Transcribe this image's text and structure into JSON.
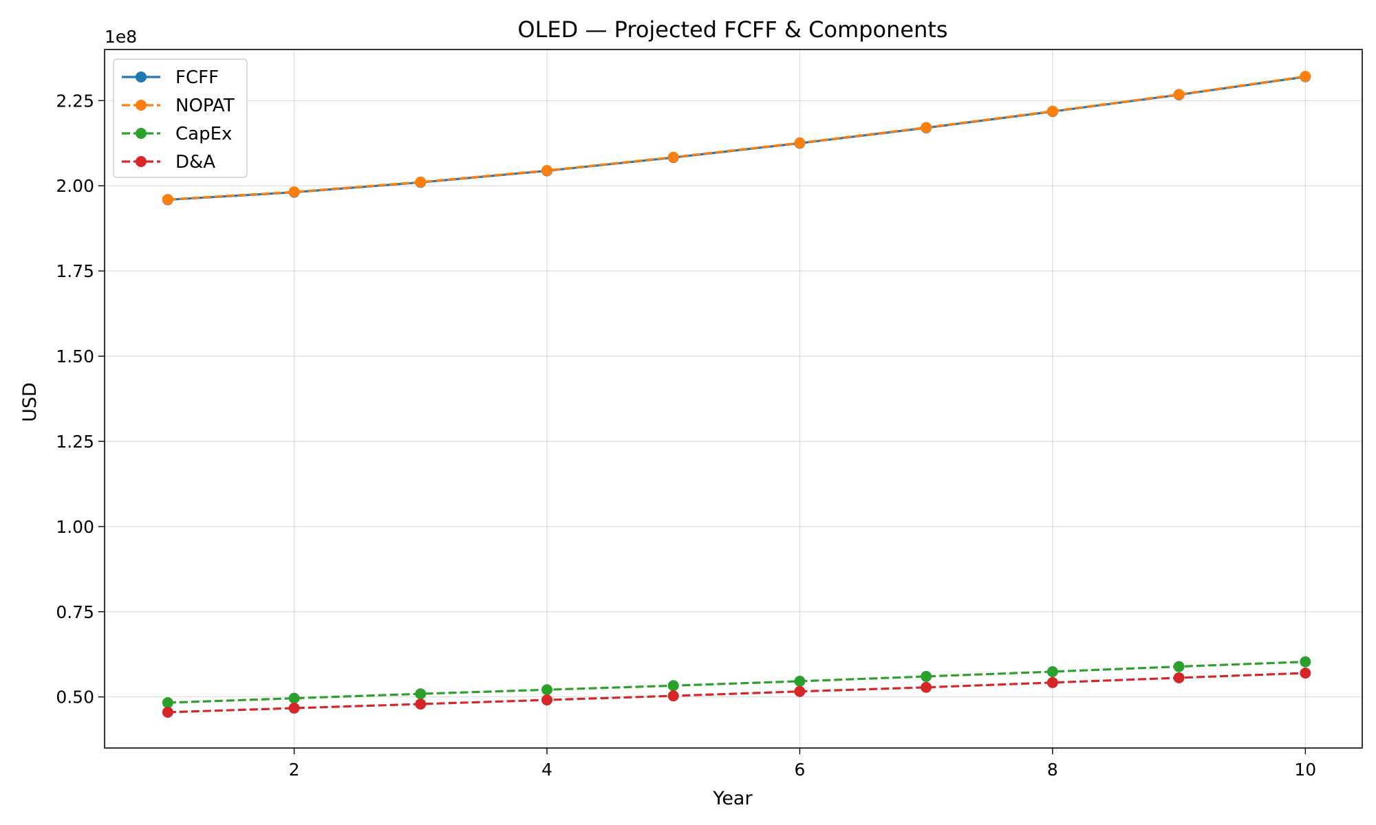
{
  "chart_data": {
    "type": "line",
    "title": "OLED — Projected FCFF & Components",
    "xlabel": "Year",
    "ylabel": "USD",
    "y_offset_label": "1e8",
    "xlim": [
      0.5,
      10.45
    ],
    "ylim": [
      35000000,
      240000000
    ],
    "x_ticks": [
      2,
      4,
      6,
      8,
      10
    ],
    "x_tick_labels": [
      "2",
      "4",
      "6",
      "8",
      "10"
    ],
    "y_ticks": [
      50000000,
      75000000,
      100000000,
      125000000,
      150000000,
      175000000,
      200000000,
      225000000
    ],
    "y_tick_labels": [
      "0.50",
      "0.75",
      "1.00",
      "1.25",
      "1.50",
      "1.75",
      "2.00",
      "2.25"
    ],
    "grid": true,
    "legend_position": "top-left",
    "x": [
      1,
      2,
      3,
      4,
      5,
      6,
      7,
      8,
      9,
      10
    ],
    "series": [
      {
        "name": "FCFF",
        "color": "#1f77b4",
        "linestyle": "solid",
        "values": [
          195900000,
          198100000,
          201000000,
          204400000,
          208300000,
          212500000,
          217000000,
          221800000,
          226700000,
          232000000
        ]
      },
      {
        "name": "NOPAT",
        "color": "#ff7f0e",
        "linestyle": "dashed",
        "values": [
          196000000,
          198200000,
          201100000,
          204500000,
          208400000,
          212600000,
          217100000,
          221900000,
          226800000,
          232100000
        ]
      },
      {
        "name": "CapEx",
        "color": "#2ca02c",
        "linestyle": "dashed",
        "values": [
          48300000,
          49600000,
          50900000,
          52100000,
          53300000,
          54600000,
          56000000,
          57400000,
          58900000,
          60300000
        ]
      },
      {
        "name": "D&A",
        "color": "#d62728",
        "linestyle": "dashed",
        "values": [
          45500000,
          46700000,
          47900000,
          49100000,
          50300000,
          51600000,
          52800000,
          54200000,
          55600000,
          57000000
        ]
      }
    ]
  }
}
